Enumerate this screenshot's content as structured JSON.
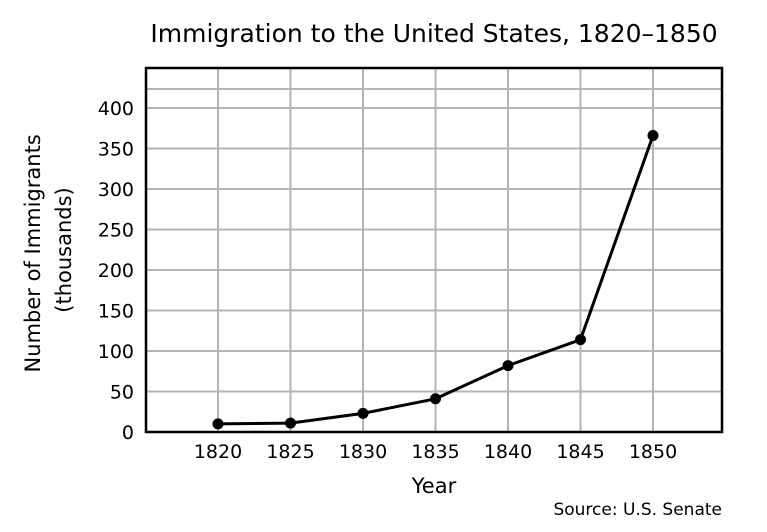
{
  "chart_data": {
    "type": "line",
    "title": "Immigration to the United States, 1820–1850",
    "xlabel": "Year",
    "ylabel_lines": [
      "Number of Immigrants",
      "(thousands)"
    ],
    "source": "Source: U.S. Senate",
    "x": [
      1820,
      1825,
      1830,
      1835,
      1840,
      1845,
      1850
    ],
    "x_tick_labels": [
      "1820",
      "1825",
      "1830",
      "1835",
      "1840",
      "1845",
      "1850"
    ],
    "series": [
      {
        "values": [
          10,
          11,
          23,
          41,
          82,
          114,
          366
        ]
      }
    ],
    "y_ticks": [
      0,
      50,
      100,
      150,
      200,
      250,
      300,
      350,
      400
    ],
    "ylim": [
      0,
      400
    ],
    "grid": true,
    "colors": {
      "line": "#000000",
      "grid": "#b3b3b3",
      "marker": "#000000"
    }
  }
}
